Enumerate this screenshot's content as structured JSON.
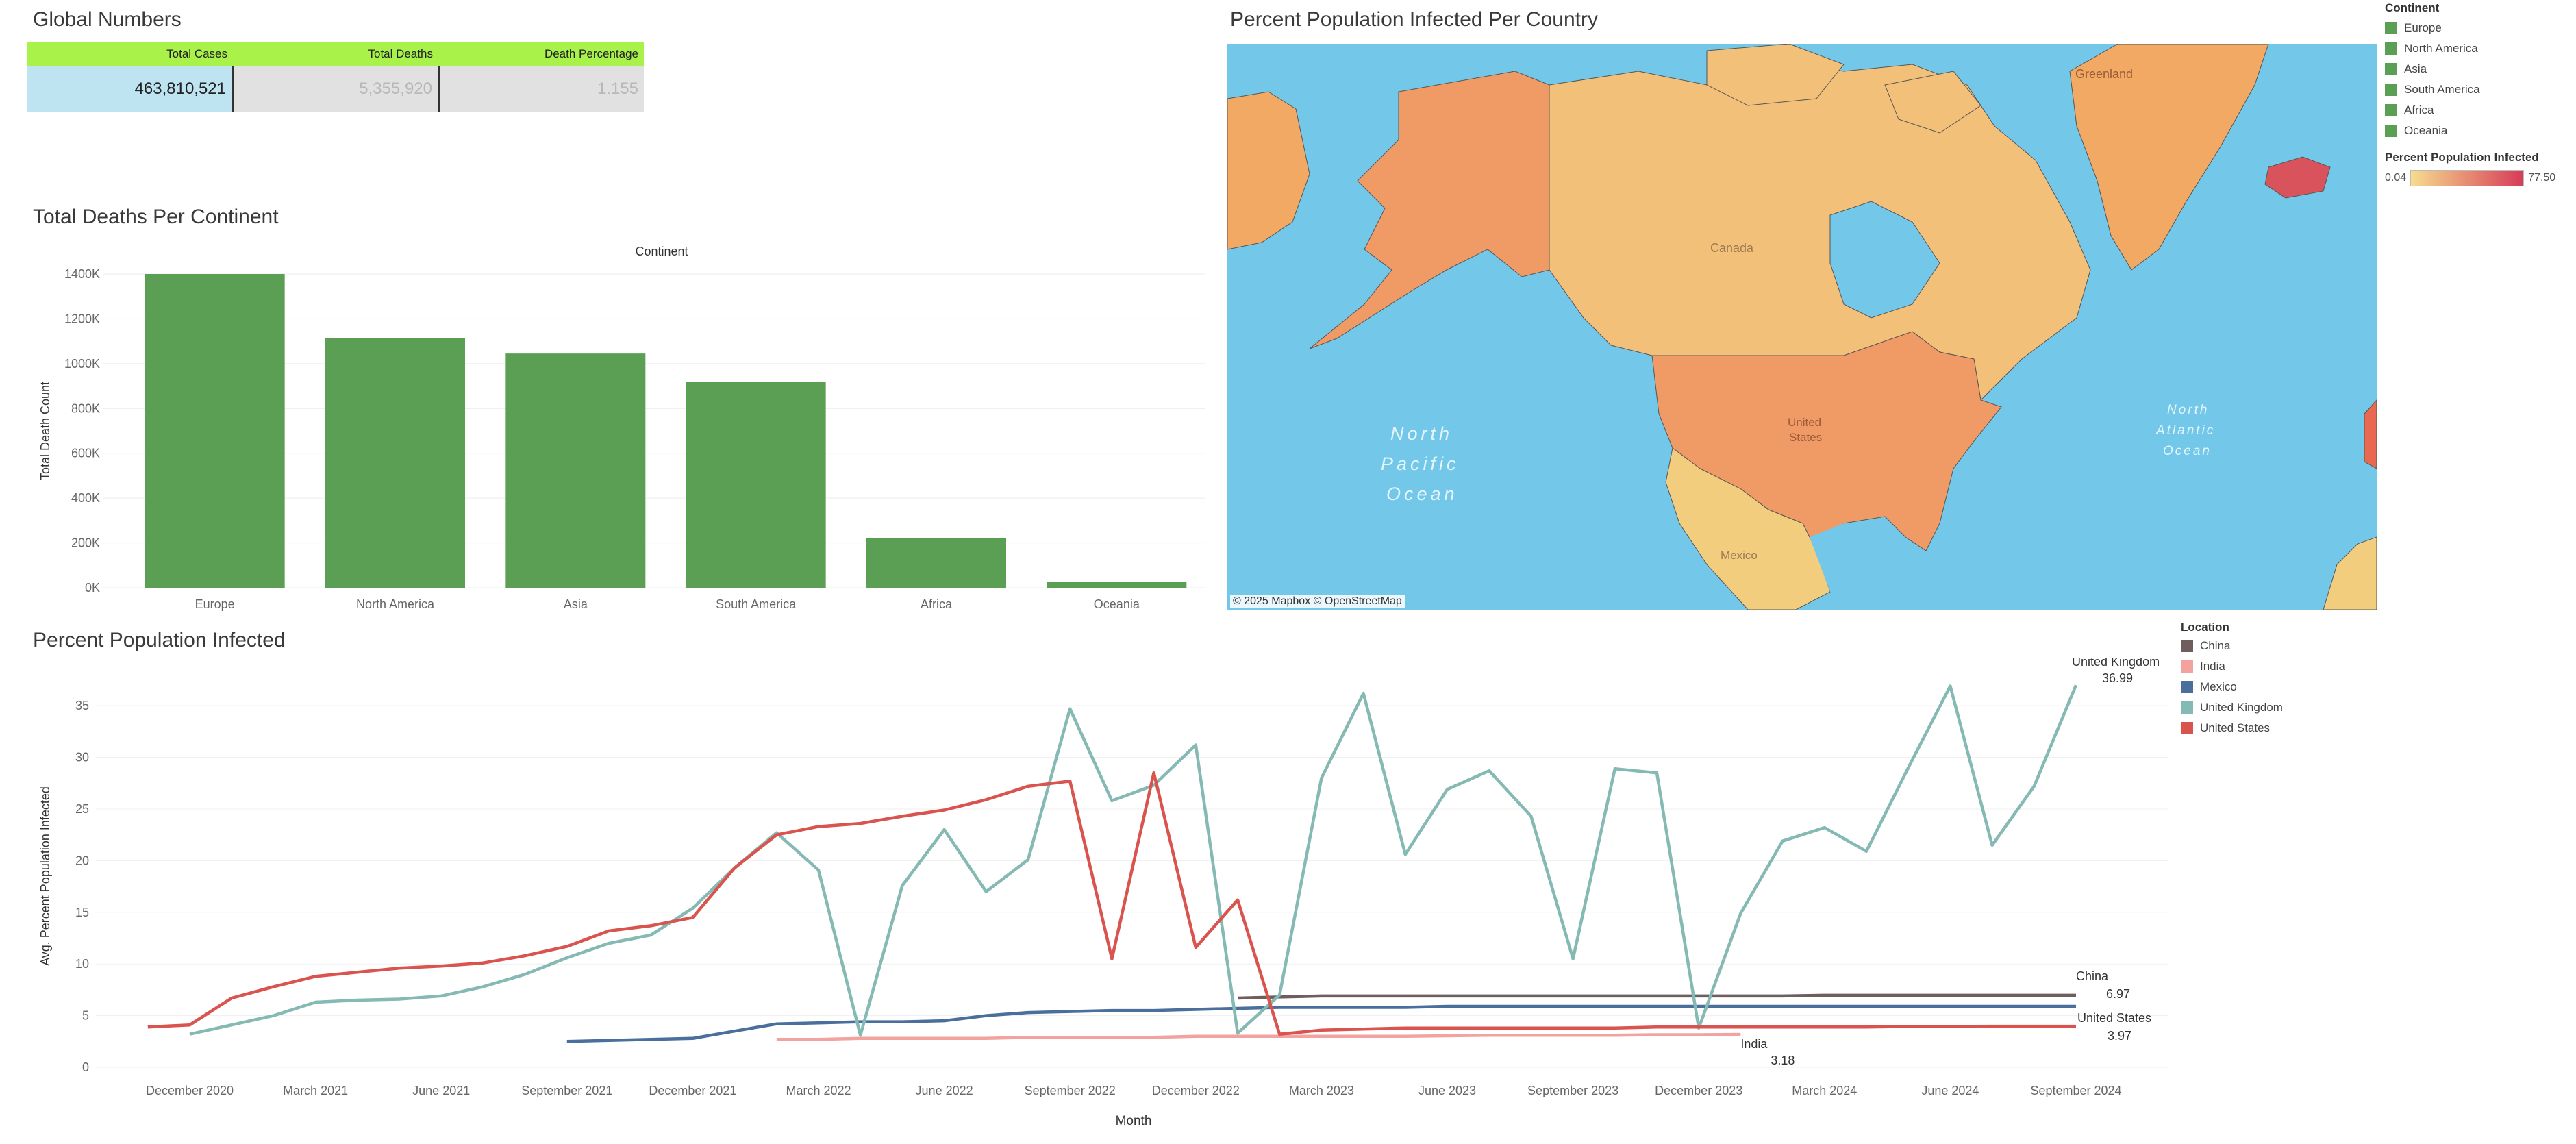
{
  "global_numbers": {
    "title": "Global Numbers",
    "headers": [
      "Total Cases",
      "Total Deaths",
      "Death Percentage"
    ],
    "values": [
      "463,810,521",
      "5,355,920",
      "1.155"
    ]
  },
  "map": {
    "title": "Percent Population Infected Per Country",
    "labels": {
      "greenland": "Greenland",
      "canada": "Canada",
      "united_states_1": "United",
      "united_states_2": "States",
      "mexico": "Mexico",
      "north_pacific_1": "North",
      "north_pacific_2": "Pacific",
      "north_pacific_3": "Ocean",
      "north_atlantic_1": "North",
      "north_atlantic_2": "Atlantic",
      "north_atlantic_3": "Ocean"
    },
    "credit": "© 2025 Mapbox  © OpenStreetMap"
  },
  "continent_legend": {
    "title": "Continent",
    "items": [
      "Europe",
      "North America",
      "Asia",
      "South America",
      "Africa",
      "Oceania"
    ],
    "color": "#5b9f55"
  },
  "infected_legend": {
    "title": "Percent Population Infected",
    "min": "0.04",
    "max": "77.50",
    "color_low": "#f7dc8e",
    "color_high": "#d63c58"
  },
  "location_legend": {
    "title": "Location",
    "items": [
      {
        "name": "China",
        "color": "#6e5e5e"
      },
      {
        "name": "India",
        "color": "#f2a3a0"
      },
      {
        "name": "Mexico",
        "color": "#4a6f9c"
      },
      {
        "name": "United Kingdom",
        "color": "#85b9b3"
      },
      {
        "name": "United States",
        "color": "#d9534f"
      }
    ]
  },
  "chart_data": [
    {
      "type": "bar",
      "title": "Total Deaths Per Continent",
      "header": "Continent",
      "ylabel": "Total Death Count",
      "categories": [
        "Europe",
        "North America",
        "Asia",
        "South America",
        "Africa",
        "Oceania"
      ],
      "values": [
        1400000,
        1115000,
        1045000,
        920000,
        222000,
        25000
      ],
      "ylim": [
        0,
        1400000
      ],
      "yticks": [
        0,
        200000,
        400000,
        600000,
        800000,
        1000000,
        1200000,
        1400000
      ],
      "ytick_labels": [
        "0K",
        "200K",
        "400K",
        "600K",
        "800K",
        "1000K",
        "1200K",
        "1400K"
      ],
      "color": "#5b9f55"
    },
    {
      "type": "line",
      "title": "Percent Population Infected",
      "xlabel": "Month",
      "ylabel": "Avg. Percent Population Infected",
      "ylim": [
        0,
        37
      ],
      "yticks": [
        0,
        5,
        10,
        15,
        20,
        25,
        30,
        35
      ],
      "x_start": "2020-11",
      "xtick_labels": [
        "December 2020",
        "March 2021",
        "June 2021",
        "September 2021",
        "December 2021",
        "March 2022",
        "June 2022",
        "September 2022",
        "December 2022",
        "March 2023",
        "June 2023",
        "September 2023",
        "December 2023",
        "March 2024",
        "June 2024",
        "September 2024"
      ],
      "series": [
        {
          "name": "China",
          "color": "#6e5e5e",
          "start": "2023-01",
          "values": [
            6.7,
            6.8,
            6.9,
            6.9,
            6.9,
            6.9,
            6.9,
            6.9,
            6.9,
            6.9,
            6.9,
            6.9,
            6.9,
            6.9,
            6.97,
            6.97,
            6.97,
            6.97,
            6.97,
            6.97,
            6.97
          ],
          "end_label": "China",
          "end_value": "6.97"
        },
        {
          "name": "India",
          "color": "#f2a3a0",
          "start": "2022-02",
          "values": [
            2.7,
            2.7,
            2.8,
            2.8,
            2.8,
            2.8,
            2.9,
            2.9,
            2.9,
            2.9,
            3.0,
            3.0,
            3.0,
            3.0,
            3.0,
            3.0,
            3.05,
            3.1,
            3.1,
            3.1,
            3.1,
            3.15,
            3.15,
            3.18
          ],
          "end_label": "India",
          "end_value": "3.18"
        },
        {
          "name": "Mexico",
          "color": "#4a6f9c",
          "start": "2021-09",
          "values": [
            2.5,
            2.6,
            2.7,
            2.8,
            3.5,
            4.2,
            4.3,
            4.4,
            4.4,
            4.5,
            5.0,
            5.3,
            5.4,
            5.5,
            5.5,
            5.6,
            5.7,
            5.8,
            5.8,
            5.8,
            5.8,
            5.9,
            5.9,
            5.9,
            5.9,
            5.9,
            5.9,
            5.9,
            5.9,
            5.9,
            5.9,
            5.9,
            5.9,
            5.9,
            5.9,
            5.9,
            5.9
          ]
        },
        {
          "name": "United Kingdom",
          "color": "#85b9b3",
          "start": "2020-12",
          "values": [
            3.2,
            4.1,
            5.0,
            6.3,
            6.5,
            6.6,
            6.9,
            7.8,
            9.0,
            10.6,
            12.0,
            12.8,
            15.4,
            19.3,
            22.7,
            19.1,
            3.1,
            17.6,
            23.0,
            17.0,
            20.1,
            34.7,
            25.8,
            27.3,
            31.2,
            3.3,
            7.0,
            28.0,
            36.2,
            20.6,
            26.9,
            28.7,
            24.3,
            10.5,
            28.9,
            28.5,
            3.8,
            14.9,
            21.9,
            23.2,
            20.9,
            29.0,
            36.9,
            21.5,
            27.2,
            36.99
          ],
          "end_label": "United Kingdom",
          "end_value": "36.99"
        },
        {
          "name": "United States",
          "color": "#d9534f",
          "start": "2020-11",
          "values": [
            3.9,
            4.1,
            6.7,
            7.8,
            8.8,
            9.2,
            9.6,
            9.8,
            10.1,
            10.8,
            11.7,
            13.2,
            13.7,
            14.5,
            19.3,
            22.5,
            23.3,
            23.6,
            24.3,
            24.9,
            25.9,
            27.2,
            27.7,
            10.5,
            28.5,
            11.6,
            16.2,
            3.2,
            3.6,
            3.7,
            3.8,
            3.8,
            3.8,
            3.8,
            3.8,
            3.8,
            3.9,
            3.9,
            3.9,
            3.9,
            3.9,
            3.9,
            3.95,
            3.95,
            3.97,
            3.97,
            3.97
          ],
          "end_label": "United States",
          "end_value": "3.97"
        }
      ]
    }
  ]
}
